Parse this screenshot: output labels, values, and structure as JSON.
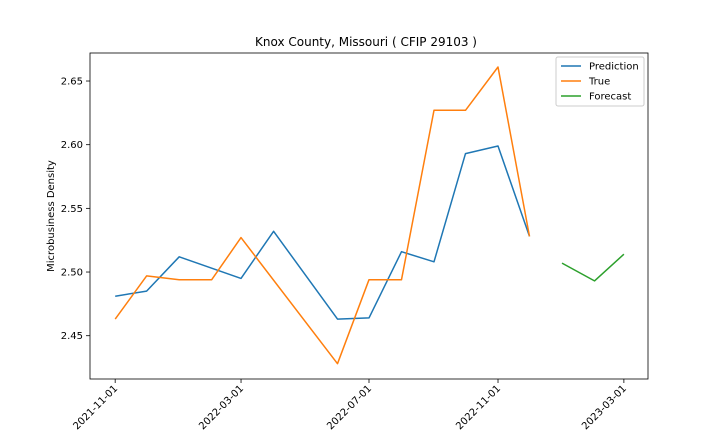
{
  "chart_data": {
    "type": "line",
    "title": "Knox County, Missouri ( CFIP 29103 )",
    "xlabel": "",
    "ylabel": "Microbusiness Density",
    "x_ticks": [
      "2021-11-01",
      "2022-03-01",
      "2022-07-01",
      "2022-11-01",
      "2023-03-01"
    ],
    "y_ticks": [
      "2.45",
      "2.50",
      "2.55",
      "2.60",
      "2.65"
    ],
    "ylim": [
      2.416,
      2.672
    ],
    "xlim": [
      "2021-10-08",
      "2023-03-24"
    ],
    "legend_position": "top-right",
    "series": [
      {
        "name": "Prediction",
        "color": "#1f77b4",
        "points": [
          {
            "x": "2021-11-01",
            "y": 2.481
          },
          {
            "x": "2021-12-01",
            "y": 2.485
          },
          {
            "x": "2022-01-01",
            "y": 2.512
          },
          {
            "x": "2022-03-01",
            "y": 2.495
          },
          {
            "x": "2022-04-01",
            "y": 2.532
          },
          {
            "x": "2022-06-01",
            "y": 2.463
          },
          {
            "x": "2022-07-01",
            "y": 2.464
          },
          {
            "x": "2022-08-01",
            "y": 2.516
          },
          {
            "x": "2022-09-01",
            "y": 2.508
          },
          {
            "x": "2022-10-01",
            "y": 2.593
          },
          {
            "x": "2022-11-01",
            "y": 2.599
          },
          {
            "x": "2022-12-01",
            "y": 2.528
          }
        ]
      },
      {
        "name": "True",
        "color": "#ff7f0e",
        "points": [
          {
            "x": "2021-11-01",
            "y": 2.463
          },
          {
            "x": "2021-12-01",
            "y": 2.497
          },
          {
            "x": "2022-01-01",
            "y": 2.494
          },
          {
            "x": "2022-02-01",
            "y": 2.494
          },
          {
            "x": "2022-03-01",
            "y": 2.527
          },
          {
            "x": "2022-06-01",
            "y": 2.428
          },
          {
            "x": "2022-07-01",
            "y": 2.494
          },
          {
            "x": "2022-08-01",
            "y": 2.494
          },
          {
            "x": "2022-09-01",
            "y": 2.627
          },
          {
            "x": "2022-10-01",
            "y": 2.627
          },
          {
            "x": "2022-11-01",
            "y": 2.661
          },
          {
            "x": "2022-12-01",
            "y": 2.528
          }
        ]
      },
      {
        "name": "Forecast",
        "color": "#2ca02c",
        "points": [
          {
            "x": "2023-01-01",
            "y": 2.507
          },
          {
            "x": "2023-02-01",
            "y": 2.493
          },
          {
            "x": "2023-03-01",
            "y": 2.514
          }
        ]
      }
    ]
  }
}
